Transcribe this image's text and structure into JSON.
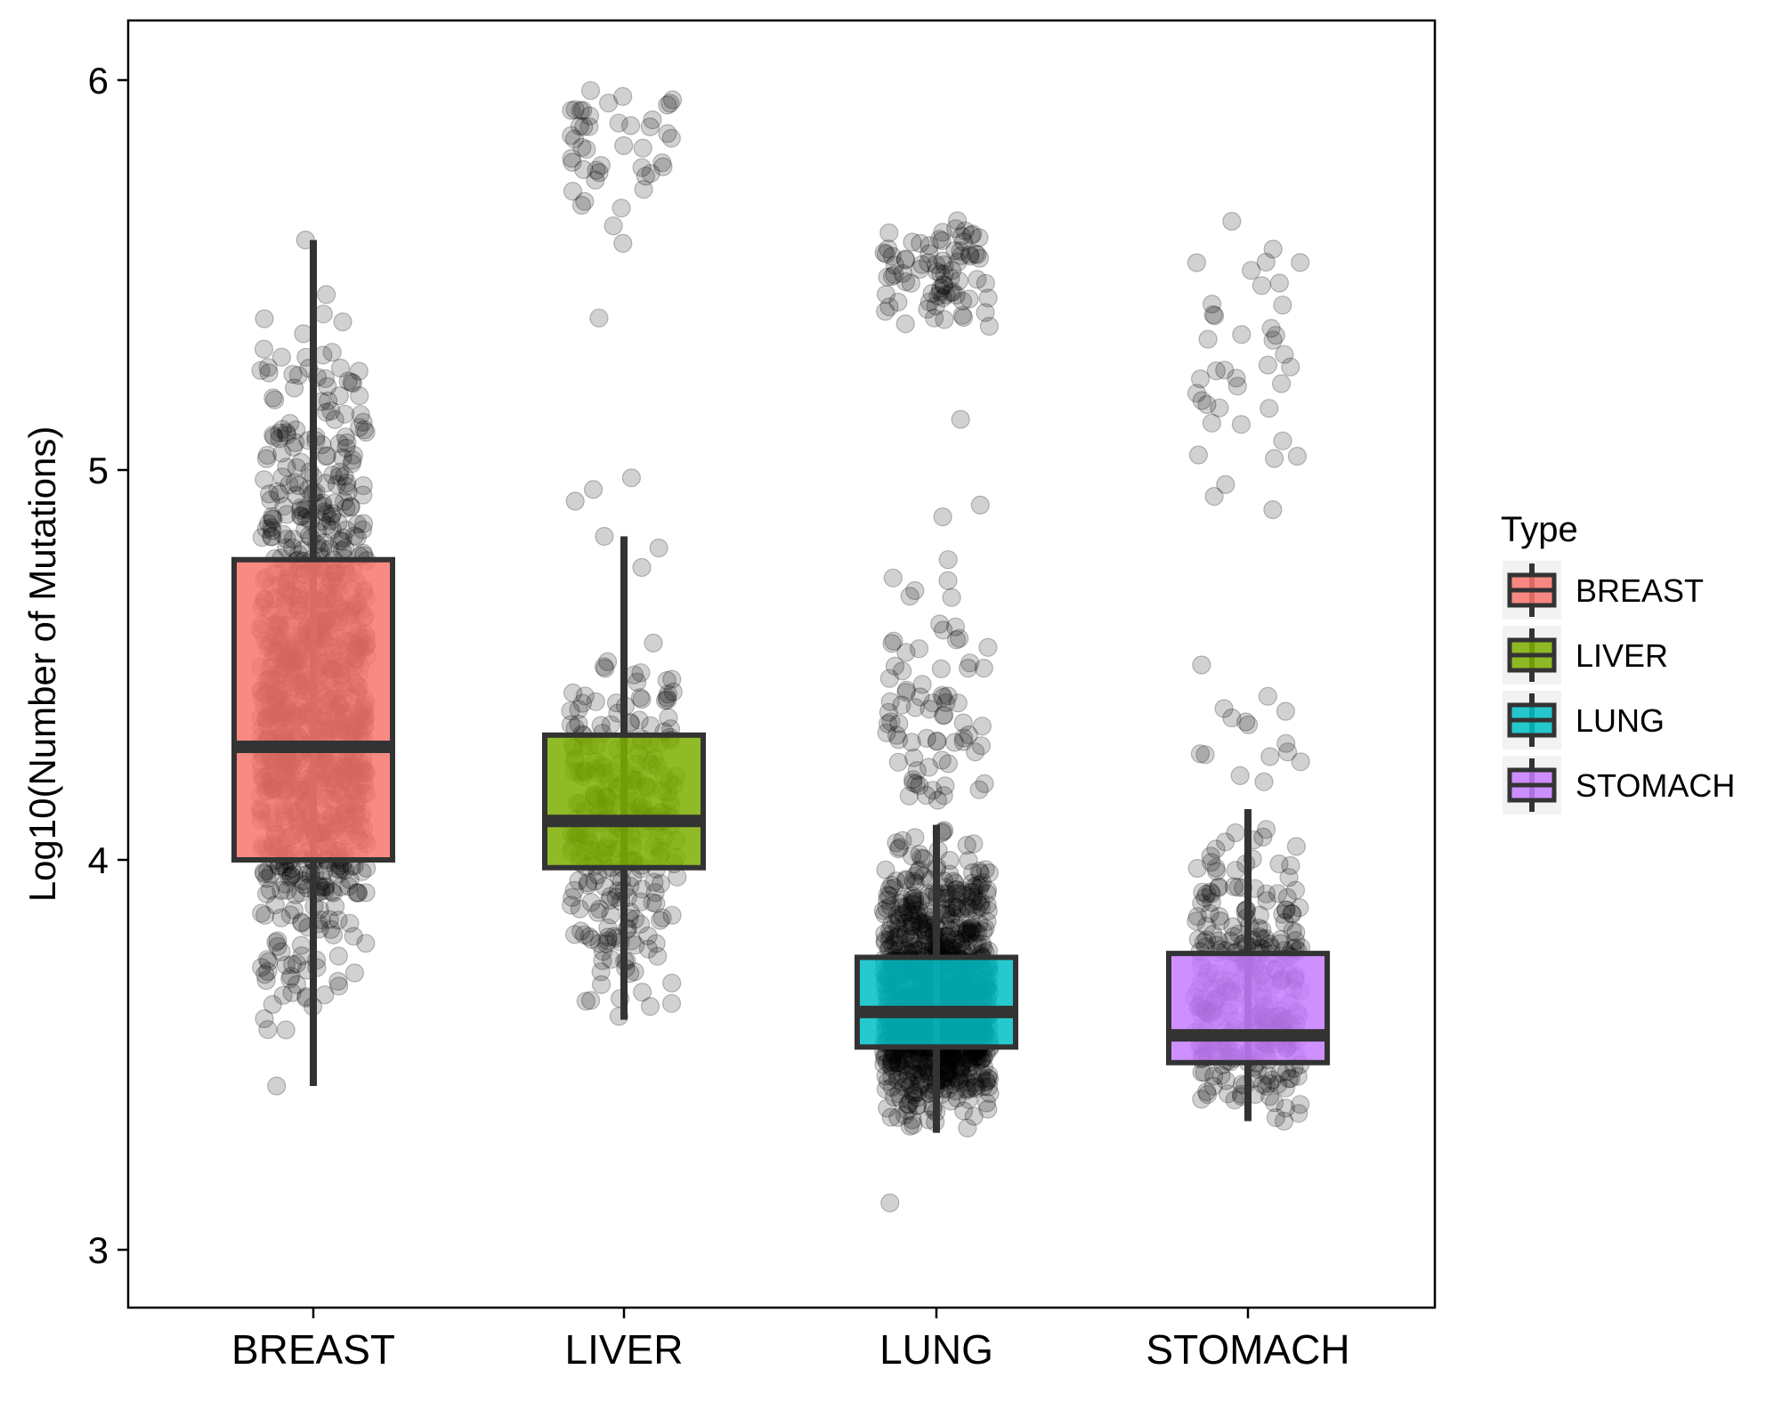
{
  "chart_data": {
    "type": "box",
    "title": "",
    "xlabel": "",
    "ylabel": "Log10(Number of Mutations)",
    "ylim": [
      2.85,
      6.15
    ],
    "yticks": [
      3,
      4,
      5,
      6
    ],
    "ytick_labels": [
      "3",
      "4",
      "5",
      "6"
    ],
    "grid": false,
    "legend": {
      "title": "Type",
      "position": "right"
    },
    "categories": [
      "BREAST",
      "LIVER",
      "LUNG",
      "STOMACH"
    ],
    "colors": {
      "BREAST": "#F8766D",
      "LIVER": "#7CAE00",
      "LUNG": "#00BFC4",
      "STOMACH": "#C77CFF"
    },
    "boxes": [
      {
        "category": "BREAST",
        "whisker_low": 3.42,
        "q1": 4.0,
        "median": 4.29,
        "q3": 4.77,
        "whisker_high": 5.59
      },
      {
        "category": "LIVER",
        "whisker_low": 3.59,
        "q1": 3.98,
        "median": 4.1,
        "q3": 4.32,
        "whisker_high": 4.83
      },
      {
        "category": "LUNG",
        "whisker_low": 3.3,
        "q1": 3.52,
        "median": 3.61,
        "q3": 3.75,
        "whisker_high": 4.09
      },
      {
        "category": "STOMACH",
        "whisker_low": 3.33,
        "q1": 3.48,
        "median": 3.55,
        "q3": 3.76,
        "whisker_high": 4.13
      }
    ],
    "points_style": {
      "color": "#000000",
      "opacity": 0.18,
      "jitter": true
    },
    "points": [
      {
        "category": "BREAST",
        "clusters": [
          {
            "low": 3.55,
            "high": 5.4,
            "mode": 4.35,
            "n": 820
          },
          {
            "low": 3.85,
            "high": 4.75,
            "mode": 4.25,
            "n": 220
          }
        ],
        "extra": [
          3.42,
          5.59,
          5.45,
          5.4,
          5.38
        ]
      },
      {
        "category": "LIVER",
        "clusters": [
          {
            "low": 3.58,
            "high": 4.6,
            "mode": 4.08,
            "n": 270
          },
          {
            "low": 5.56,
            "high": 6.0,
            "mode": 5.88,
            "n": 45
          }
        ],
        "extra": [
          4.95,
          4.98,
          4.92,
          4.83,
          4.8,
          4.75,
          5.39
        ]
      },
      {
        "category": "LUNG",
        "clusters": [
          {
            "low": 3.3,
            "high": 4.1,
            "mode": 3.58,
            "n": 850
          },
          {
            "low": 3.4,
            "high": 3.8,
            "mode": 3.58,
            "n": 250
          },
          {
            "low": 4.1,
            "high": 4.8,
            "mode": 4.3,
            "n": 75
          },
          {
            "low": 5.35,
            "high": 5.66,
            "mode": 5.5,
            "n": 80
          }
        ],
        "extra": [
          3.12,
          5.13,
          4.91,
          4.88,
          4.77
        ]
      },
      {
        "category": "STOMACH",
        "clusters": [
          {
            "low": 3.33,
            "high": 4.12,
            "mode": 3.55,
            "n": 300
          },
          {
            "low": 4.15,
            "high": 4.5,
            "mode": 4.25,
            "n": 14
          },
          {
            "low": 4.82,
            "high": 5.76,
            "mode": 5.25,
            "n": 40
          }
        ],
        "extra": [
          3.33,
          4.5
        ]
      }
    ]
  }
}
